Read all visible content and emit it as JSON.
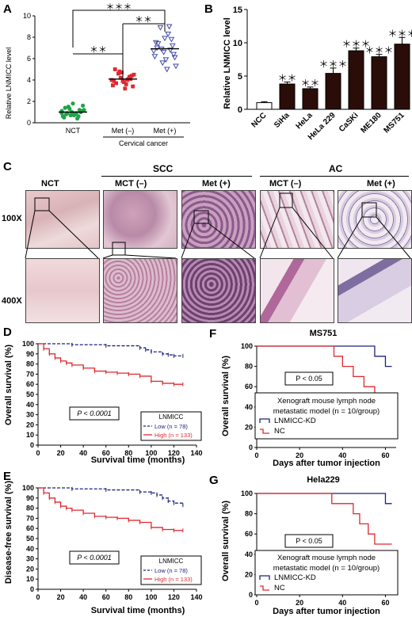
{
  "panel_letters": [
    "A",
    "B",
    "C",
    "D",
    "E",
    "F",
    "G"
  ],
  "panel_a": {
    "ylabel": "Relative LNMICC level",
    "categories": [
      "NCT",
      "Met (–)",
      "Met (+)"
    ],
    "group_label": "Cervical cancer",
    "sig_top": "＊＊＊",
    "sig_left": "＊＊",
    "sig_right": "＊＊",
    "yticks": [
      "0",
      "2",
      "4",
      "6",
      "8",
      "10"
    ],
    "colors": {
      "NCT": "#1ea34a",
      "Met (–)": "#e0282f",
      "Met (+)": "#3f4aa8"
    }
  },
  "panel_b": {
    "ylabel": "Relative LNMICC level",
    "yticks": [
      "0",
      "5",
      "10",
      "15"
    ],
    "categories": [
      "NCC",
      "SiHa",
      "HeLa",
      "HeLa 229",
      "CaSKi",
      "ME180",
      "MS751"
    ],
    "values": [
      1.0,
      3.8,
      3.1,
      5.4,
      8.8,
      7.9,
      9.8
    ],
    "errors": [
      0.15,
      0.3,
      0.25,
      0.8,
      0.4,
      0.35,
      1.0
    ],
    "sig": [
      "",
      "＊＊",
      "＊＊",
      "＊＊＊",
      "＊＊＊",
      "＊＊＊",
      "＊＊＊"
    ]
  },
  "panel_c": {
    "groups": [
      "SCC",
      "AC"
    ],
    "columns": [
      "NCT",
      "MCT (–)",
      "Met (+)",
      "MCT (–)",
      "Met (+)"
    ],
    "rows": [
      "100X",
      "400X"
    ]
  },
  "panel_d": {
    "ylabel": "Overall survival (%)",
    "xlabel": "Survival time (months)",
    "pvalue": "P < 0.0001",
    "legend_title": "LNMICC",
    "legend": [
      "Low (n = 78)",
      "High (n = 133)"
    ],
    "yticks": [
      "0",
      "10",
      "20",
      "30",
      "40",
      "50",
      "60",
      "70",
      "80",
      "90",
      "100"
    ],
    "xticks": [
      "0",
      "20",
      "40",
      "60",
      "80",
      "100",
      "120",
      "140"
    ]
  },
  "panel_e": {
    "ylabel": "Disease-free survival (%)",
    "xlabel": "Survival time (months)",
    "pvalue": "P < 0.0001",
    "legend_title": "LNMICC",
    "legend": [
      "Low (n = 78)",
      "High (n = 133)"
    ],
    "yticks": [
      "0",
      "10",
      "20",
      "30",
      "40",
      "50",
      "60",
      "70",
      "80",
      "90",
      "100"
    ],
    "xticks": [
      "0",
      "20",
      "40",
      "60",
      "80",
      "100",
      "120",
      "140"
    ]
  },
  "panel_f": {
    "title": "MS751",
    "ylabel": "Overall survival (%)",
    "xlabel": "Days after tumor injection",
    "pvalue": "P < 0.05",
    "model_line1": "Xenograft mouse lymph node",
    "model_line2": "metastatic model (n = 10/group)",
    "legend": [
      "LNMICC-KD",
      "NC"
    ],
    "yticks": [
      "0",
      "20",
      "40",
      "60",
      "80",
      "100"
    ],
    "xticks": [
      "0",
      "20",
      "40",
      "60"
    ]
  },
  "panel_g": {
    "title": "Hela229",
    "ylabel": "Overall survival (%)",
    "xlabel": "Days after tumor injection",
    "pvalue": "P < 0.05",
    "model_line1": "Xenograft mouse lymph node",
    "model_line2": "metastatic model (n = 10/group)",
    "legend": [
      "LNMICC-KD",
      "NC"
    ],
    "yticks": [
      "0",
      "20",
      "40",
      "60",
      "80",
      "100"
    ],
    "xticks": [
      "0",
      "20",
      "40",
      "60"
    ]
  },
  "chart_data": [
    {
      "type": "scatter",
      "ylabel": "Relative LNMICC level",
      "categories": [
        "NCT",
        "Met (–)",
        "Met (+)"
      ],
      "series": [
        {
          "name": "NCT",
          "values": [
            0.9,
            1.2,
            0.7,
            1.5,
            0.6,
            1.0,
            0.8,
            1.3,
            0.5,
            1.1,
            0.9,
            0.7,
            1.4,
            1.6,
            0.4,
            1.0,
            0.8,
            1.2,
            0.6,
            1.8,
            0.9,
            1.1
          ]
        },
        {
          "name": "Met (–)",
          "values": [
            4.0,
            4.3,
            3.8,
            4.6,
            3.5,
            4.1,
            3.2,
            4.8,
            3.9,
            4.4,
            3.6,
            4.2,
            5.0,
            3.4,
            4.0,
            4.7,
            3.7,
            4.5,
            4.1,
            3.9
          ]
        },
        {
          "name": "Met (+)",
          "values": [
            6.7,
            7.8,
            5.9,
            8.9,
            6.2,
            7.2,
            5.0,
            6.9,
            7.5,
            6.4,
            8.3,
            5.6,
            7.0,
            6.1,
            9.0,
            6.6,
            7.4,
            5.3,
            6.8,
            7.9
          ]
        }
      ],
      "ylim": [
        0,
        10
      ]
    },
    {
      "type": "bar",
      "ylabel": "Relative LNMICC level",
      "categories": [
        "NCC",
        "SiHa",
        "HeLa",
        "HeLa 229",
        "CaSKi",
        "ME180",
        "MS751"
      ],
      "values": [
        1.0,
        3.8,
        3.1,
        5.4,
        8.8,
        7.9,
        9.8
      ],
      "ylim": [
        0,
        15
      ]
    },
    {
      "type": "line",
      "ylabel": "Overall survival (%)",
      "xlabel": "Survival time (months)",
      "xlim": [
        0,
        140
      ],
      "ylim": [
        0,
        100
      ],
      "series": [
        {
          "name": "Low (n = 78)",
          "x": [
            0,
            30,
            60,
            90,
            95,
            100,
            110,
            115,
            120,
            128
          ],
          "y": [
            100,
            99,
            98,
            96,
            94,
            92,
            90,
            89,
            88,
            88
          ]
        },
        {
          "name": "High (n = 133)",
          "x": [
            0,
            5,
            10,
            15,
            20,
            25,
            30,
            40,
            50,
            60,
            70,
            80,
            90,
            100,
            110,
            120,
            128
          ],
          "y": [
            100,
            95,
            90,
            86,
            83,
            81,
            79,
            76,
            73,
            72,
            71,
            70,
            68,
            63,
            61,
            60,
            60
          ]
        }
      ]
    },
    {
      "type": "line",
      "ylabel": "Disease-free survival (%)",
      "xlabel": "Survival time (months)",
      "xlim": [
        0,
        140
      ],
      "ylim": [
        0,
        100
      ],
      "series": [
        {
          "name": "Low (n = 78)",
          "x": [
            0,
            30,
            60,
            90,
            100,
            105,
            110,
            115,
            120,
            128
          ],
          "y": [
            100,
            99,
            98,
            96,
            95,
            93,
            90,
            87,
            85,
            83
          ]
        },
        {
          "name": "High (n = 133)",
          "x": [
            0,
            5,
            10,
            15,
            20,
            25,
            30,
            40,
            50,
            60,
            70,
            80,
            90,
            100,
            110,
            120,
            128
          ],
          "y": [
            100,
            95,
            90,
            86,
            82,
            80,
            78,
            75,
            72,
            71,
            70,
            68,
            66,
            61,
            59,
            58,
            58
          ]
        }
      ]
    },
    {
      "type": "line",
      "title": "MS751",
      "ylabel": "Overall survival (%)",
      "xlabel": "Days after tumor injection",
      "xlim": [
        0,
        65
      ],
      "ylim": [
        0,
        100
      ],
      "series": [
        {
          "name": "LNMICC-KD",
          "x": [
            0,
            55,
            55,
            60,
            60,
            63
          ],
          "y": [
            100,
            100,
            90,
            90,
            80,
            80
          ]
        },
        {
          "name": "NC",
          "x": [
            0,
            36,
            36,
            40,
            40,
            45,
            45,
            50,
            50,
            55,
            55,
            58,
            58,
            60,
            60,
            63
          ],
          "y": [
            100,
            100,
            90,
            90,
            80,
            80,
            70,
            70,
            60,
            60,
            50,
            50,
            40,
            40,
            40,
            40
          ]
        }
      ]
    },
    {
      "type": "line",
      "title": "Hela229",
      "ylabel": "Overall survival (%)",
      "xlabel": "Days after tumor injection",
      "xlim": [
        0,
        65
      ],
      "ylim": [
        0,
        100
      ],
      "series": [
        {
          "name": "LNMICC-KD",
          "x": [
            0,
            60,
            60,
            63
          ],
          "y": [
            100,
            100,
            90,
            90
          ]
        },
        {
          "name": "NC",
          "x": [
            0,
            35,
            35,
            45,
            45,
            48,
            48,
            52,
            52,
            55,
            55,
            63
          ],
          "y": [
            100,
            100,
            90,
            90,
            80,
            80,
            70,
            70,
            60,
            60,
            50,
            50
          ]
        }
      ]
    }
  ]
}
